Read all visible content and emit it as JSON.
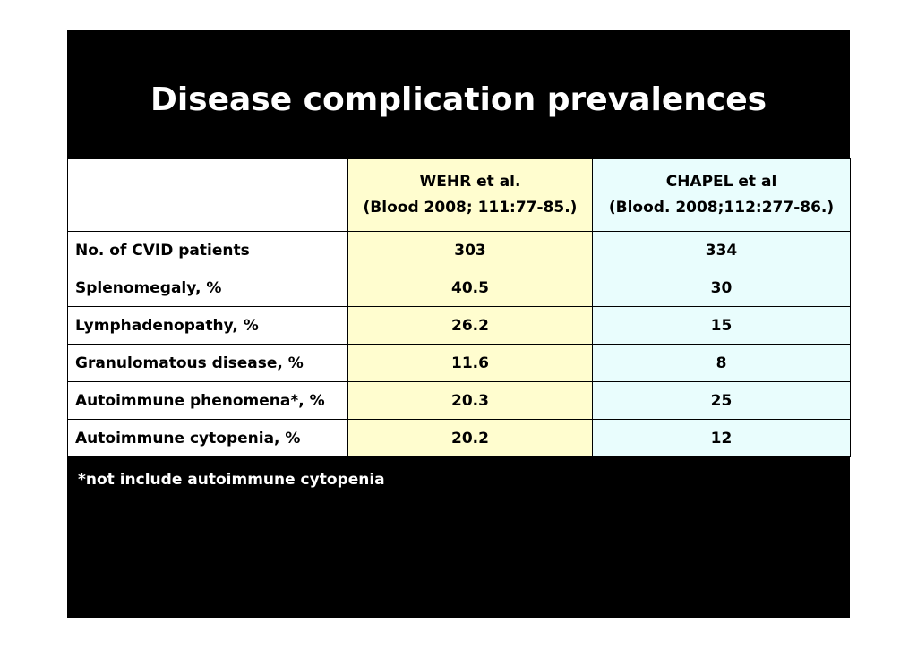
{
  "slide": {
    "title": "Disease complication prevalences",
    "footnote": "*not include autoimmune cytopenia"
  },
  "table": {
    "columns": [
      {
        "line1": "",
        "line2": ""
      },
      {
        "line1": "WEHR et al.",
        "line2": "(Blood 2008; 111:77-85.)"
      },
      {
        "line1": "CHAPEL et al",
        "line2": "(Blood. 2008;112:277-86.)"
      }
    ],
    "rows": [
      {
        "label": "No. of CVID patients",
        "wehr": "303",
        "chapel": "334"
      },
      {
        "label": "Splenomegaly, %",
        "wehr": "40.5",
        "chapel": "30"
      },
      {
        "label": "Lymphadenopathy, %",
        "wehr": "26.2",
        "chapel": "15"
      },
      {
        "label": "Granulomatous disease, %",
        "wehr": "11.6",
        "chapel": "8"
      },
      {
        "label": "Autoimmune phenomena*, %",
        "wehr": "20.3",
        "chapel": "25"
      },
      {
        "label": "Autoimmune cytopenia, %",
        "wehr": "20.2",
        "chapel": "12"
      }
    ],
    "colors": {
      "wehr_column": "#fffdcf",
      "chapel_column": "#e9fdfd",
      "slide_background": "#000000"
    }
  }
}
